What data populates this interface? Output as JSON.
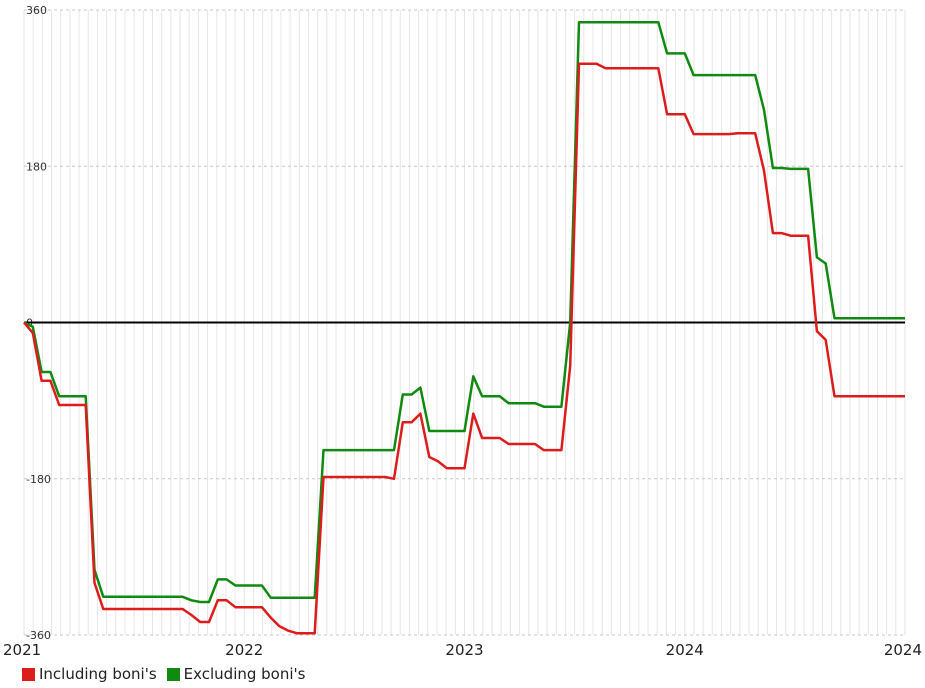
{
  "chart_data": {
    "type": "line",
    "x_ticks": [
      "2021",
      "2022",
      "2023",
      "2024",
      "2024"
    ],
    "y_ticks": [
      360,
      180,
      0,
      -180,
      -360
    ],
    "ylim": [
      -360,
      360
    ],
    "grid": true,
    "legend_position": "bottom-left",
    "series": [
      {
        "name": "Including boni's",
        "color": "#dd1c1c",
        "x": [
          2021.0,
          2021.04,
          2021.08,
          2021.12,
          2021.16,
          2021.2,
          2021.24,
          2021.28,
          2021.32,
          2021.36,
          2021.4,
          2021.44,
          2021.48,
          2021.52,
          2021.56,
          2021.6,
          2021.64,
          2021.68,
          2021.72,
          2021.76,
          2021.8,
          2021.84,
          2021.88,
          2021.92,
          2021.96,
          2022.0,
          2022.04,
          2022.08,
          2022.12,
          2022.16,
          2022.2,
          2022.24,
          2022.28,
          2022.32,
          2022.36,
          2022.4,
          2022.44,
          2022.48,
          2022.52,
          2022.56,
          2022.6,
          2022.64,
          2022.68,
          2022.72,
          2022.76,
          2022.8,
          2022.84,
          2022.88,
          2022.92,
          2022.96,
          2023.0,
          2023.04,
          2023.08,
          2023.12,
          2023.16,
          2023.2,
          2023.24,
          2023.28,
          2023.32,
          2023.36,
          2023.4,
          2023.44,
          2023.48,
          2023.52,
          2023.56,
          2023.6,
          2023.64,
          2023.68,
          2023.72,
          2023.76,
          2023.8,
          2023.84,
          2023.88,
          2023.92,
          2023.96,
          2024.0,
          2024.04,
          2024.08,
          2024.12,
          2024.16,
          2024.2,
          2024.24,
          2024.28,
          2024.32,
          2024.36,
          2024.4,
          2024.44,
          2024.48,
          2024.52,
          2024.56,
          2024.6,
          2024.64,
          2024.68,
          2024.72,
          2024.76,
          2024.8,
          2024.84,
          2024.88,
          2024.92,
          2024.96,
          2025.0
        ],
        "values": [
          0,
          -12,
          -67,
          -67,
          -95,
          -95,
          -95,
          -95,
          -300,
          -330,
          -330,
          -330,
          -330,
          -330,
          -330,
          -330,
          -330,
          -330,
          -330,
          -337,
          -345,
          -345,
          -320,
          -320,
          -328,
          -328,
          -328,
          -328,
          -340,
          -350,
          -355,
          -358,
          -358,
          -358,
          -178,
          -178,
          -178,
          -178,
          -178,
          -178,
          -178,
          -178,
          -180,
          -115,
          -115,
          -105,
          -155,
          -160,
          -168,
          -168,
          -168,
          -105,
          -133,
          -133,
          -133,
          -140,
          -140,
          -140,
          -140,
          -147,
          -147,
          -147,
          -50,
          298,
          298,
          298,
          293,
          293,
          293,
          293,
          293,
          293,
          293,
          240,
          240,
          240,
          217,
          217,
          217,
          217,
          217,
          218,
          218,
          218,
          175,
          103,
          103,
          100,
          100,
          100,
          -10,
          -20,
          -85,
          -85,
          -85,
          -85,
          -85,
          -85,
          -85,
          -85,
          -85
        ]
      },
      {
        "name": "Excluding boni's",
        "color": "#108a10",
        "x": [
          2021.0,
          2021.04,
          2021.08,
          2021.12,
          2021.16,
          2021.2,
          2021.24,
          2021.28,
          2021.32,
          2021.36,
          2021.4,
          2021.44,
          2021.48,
          2021.52,
          2021.56,
          2021.6,
          2021.64,
          2021.68,
          2021.72,
          2021.76,
          2021.8,
          2021.84,
          2021.88,
          2021.92,
          2021.96,
          2022.0,
          2022.04,
          2022.08,
          2022.12,
          2022.16,
          2022.2,
          2022.24,
          2022.28,
          2022.32,
          2022.36,
          2022.4,
          2022.44,
          2022.48,
          2022.52,
          2022.56,
          2022.6,
          2022.64,
          2022.68,
          2022.72,
          2022.76,
          2022.8,
          2022.84,
          2022.88,
          2022.92,
          2022.96,
          2023.0,
          2023.04,
          2023.08,
          2023.12,
          2023.16,
          2023.2,
          2023.24,
          2023.28,
          2023.32,
          2023.36,
          2023.4,
          2023.44,
          2023.48,
          2023.52,
          2023.56,
          2023.6,
          2023.64,
          2023.68,
          2023.72,
          2023.76,
          2023.8,
          2023.84,
          2023.88,
          2023.92,
          2023.96,
          2024.0,
          2024.04,
          2024.08,
          2024.12,
          2024.16,
          2024.2,
          2024.24,
          2024.28,
          2024.32,
          2024.36,
          2024.4,
          2024.44,
          2024.48,
          2024.52,
          2024.56,
          2024.6,
          2024.64,
          2024.68,
          2024.72,
          2024.76,
          2024.8,
          2024.84,
          2024.88,
          2024.92,
          2024.96,
          2025.0
        ],
        "values": [
          0,
          -5,
          -57,
          -57,
          -85,
          -85,
          -85,
          -85,
          -285,
          -316,
          -316,
          -316,
          -316,
          -316,
          -316,
          -316,
          -316,
          -316,
          -316,
          -320,
          -322,
          -322,
          -296,
          -296,
          -303,
          -303,
          -303,
          -303,
          -317,
          -317,
          -317,
          -317,
          -317,
          -317,
          -147,
          -147,
          -147,
          -147,
          -147,
          -147,
          -147,
          -147,
          -147,
          -83,
          -83,
          -75,
          -125,
          -125,
          -125,
          -125,
          -125,
          -62,
          -85,
          -85,
          -85,
          -93,
          -93,
          -93,
          -93,
          -97,
          -97,
          -97,
          0,
          346,
          346,
          346,
          346,
          346,
          346,
          346,
          346,
          346,
          346,
          310,
          310,
          310,
          285,
          285,
          285,
          285,
          285,
          285,
          285,
          285,
          245,
          178,
          178,
          177,
          177,
          177,
          75,
          68,
          5,
          5,
          5,
          5,
          5,
          5,
          5,
          5,
          5
        ]
      }
    ]
  }
}
